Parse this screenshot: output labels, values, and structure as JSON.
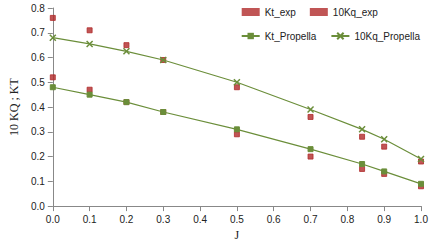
{
  "chart_data": {
    "type": "line",
    "x_label": "J",
    "y_label": "10 KQ ; KT",
    "xlim": [
      0,
      1
    ],
    "xticks": [
      {
        "value": 0,
        "label": "0.0"
      },
      0.1,
      0.2,
      0.3,
      0.4,
      0.5,
      0.6,
      0.7,
      0.8,
      0.9,
      {
        "value": 1,
        "label": "1.0"
      }
    ],
    "ylim": [
      0,
      0.8
    ],
    "yticks": [
      {
        "value": 0,
        "label": "0.0"
      },
      0.1,
      0.2,
      0.3,
      0.4,
      0.5,
      0.6,
      0.7,
      0.8
    ],
    "grid": false,
    "legend": "top-right",
    "series": [
      {
        "name": "Kt_exp",
        "type": "scatter",
        "color": "#b02a2a",
        "marker": "square",
        "x": [
          0,
          0.1,
          0.2,
          0.3,
          0.5,
          0.7,
          0.84,
          0.9,
          1
        ],
        "values": [
          0.52,
          0.47,
          0.42,
          0.38,
          0.29,
          0.2,
          0.15,
          0.13,
          0.08
        ]
      },
      {
        "name": "10Kq_exp",
        "type": "scatter",
        "color": "#b02a2a",
        "marker": "square",
        "x": [
          0,
          0.1,
          0.2,
          0.3,
          0.5,
          0.7,
          0.84,
          0.9,
          1
        ],
        "values": [
          0.76,
          0.71,
          0.65,
          0.59,
          0.48,
          0.36,
          0.28,
          0.24,
          0.18
        ]
      },
      {
        "name": "Kt_Propella",
        "type": "line",
        "color": "#6b8e3a",
        "marker": "square",
        "line_style": "solid",
        "x": [
          0,
          0.1,
          0.2,
          0.3,
          0.5,
          0.7,
          0.84,
          0.9,
          1
        ],
        "values": [
          0.48,
          0.45,
          0.42,
          0.38,
          0.31,
          0.23,
          0.17,
          0.14,
          0.09
        ]
      },
      {
        "name": "10Kq_Propella",
        "type": "line",
        "color": "#6b8e3a",
        "marker": "x",
        "line_style": "solid",
        "x": [
          0,
          0.1,
          0.2,
          0.3,
          0.5,
          0.7,
          0.84,
          0.9,
          1
        ],
        "values": [
          0.68,
          0.655,
          0.625,
          0.59,
          0.5,
          0.39,
          0.31,
          0.27,
          0.19
        ]
      }
    ]
  }
}
